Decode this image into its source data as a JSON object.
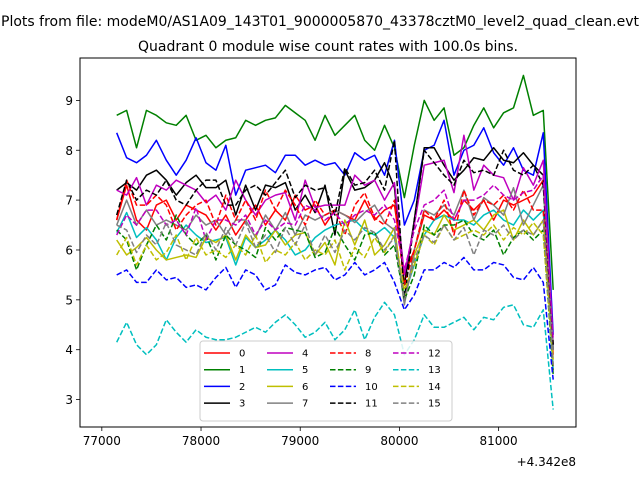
{
  "chart_data": {
    "type": "line",
    "suptitle": "Plots from file: modeM0/AS1A09_143T01_9000005870_43378cztM0_level2_quad_clean.evt",
    "title": "Quadrant 0 module wise count rates with 100.0s bins.",
    "xlabel": "",
    "ylabel": "",
    "x_offset_label": "+4.342e8",
    "x_ticks": [
      77000,
      78000,
      79000,
      80000,
      81000
    ],
    "y_ticks": [
      3,
      4,
      5,
      6,
      7,
      8,
      9
    ],
    "xlim": [
      76780,
      81780
    ],
    "ylim": [
      2.45,
      9.85
    ],
    "grid": false,
    "legend_location": "lower center",
    "legend_columns": 4,
    "x": [
      77150,
      77250,
      77350,
      77450,
      77550,
      77650,
      77750,
      77850,
      77950,
      78050,
      78150,
      78250,
      78350,
      78450,
      78550,
      78650,
      78750,
      78850,
      78950,
      79050,
      79150,
      79250,
      79350,
      79450,
      79550,
      79650,
      79750,
      79850,
      79950,
      80050,
      80150,
      80250,
      80350,
      80450,
      80550,
      80650,
      80750,
      80850,
      80950,
      81050,
      81150,
      81250,
      81350,
      81450,
      81550
    ],
    "series": [
      {
        "name": "0",
        "color": "#ff0000",
        "dash": "solid",
        "values": [
          6.6,
          7.3,
          6.6,
          6.4,
          6.9,
          7.0,
          6.6,
          6.9,
          6.8,
          6.7,
          6.4,
          6.7,
          6.3,
          6.6,
          6.9,
          6.5,
          6.8,
          6.6,
          7.1,
          6.8,
          6.9,
          6.5,
          6.8,
          6.7,
          6.6,
          7.0,
          6.6,
          6.8,
          6.9,
          5.5,
          6.0,
          6.7,
          6.6,
          6.8,
          6.6,
          7.0,
          6.8,
          7.0,
          6.6,
          7.0,
          6.9,
          7.0,
          7.1,
          7.4,
          3.9
        ]
      },
      {
        "name": "1",
        "color": "#008000",
        "dash": "solid",
        "values": [
          8.7,
          8.8,
          8.05,
          8.8,
          8.7,
          8.55,
          8.5,
          8.7,
          8.2,
          8.3,
          8.05,
          8.2,
          8.25,
          8.6,
          8.5,
          8.6,
          8.65,
          8.9,
          8.75,
          8.6,
          8.2,
          8.7,
          8.3,
          8.5,
          8.7,
          8.2,
          8.0,
          8.5,
          8.05,
          7.05,
          8.1,
          9.0,
          8.6,
          8.85,
          7.9,
          8.05,
          8.5,
          8.85,
          8.45,
          8.75,
          8.85,
          9.5,
          8.7,
          8.8,
          5.2
        ]
      },
      {
        "name": "2",
        "color": "#0000ff",
        "dash": "solid",
        "values": [
          8.35,
          7.85,
          7.75,
          7.9,
          8.2,
          7.8,
          7.5,
          7.8,
          8.25,
          7.75,
          7.6,
          8.1,
          7.1,
          7.6,
          7.65,
          7.7,
          7.55,
          7.9,
          7.9,
          7.7,
          7.8,
          7.7,
          7.75,
          7.5,
          7.95,
          7.8,
          7.9,
          7.5,
          8.2,
          6.5,
          7.0,
          8.0,
          8.1,
          8.6,
          7.5,
          8.0,
          8.1,
          8.45,
          7.95,
          7.7,
          8.05,
          7.6,
          7.5,
          8.35,
          4.3
        ]
      },
      {
        "name": "3",
        "color": "#000000",
        "dash": "solid",
        "values": [
          7.2,
          7.35,
          7.2,
          7.5,
          7.6,
          7.4,
          7.1,
          7.35,
          7.5,
          7.25,
          7.25,
          7.4,
          6.7,
          7.3,
          6.8,
          7.3,
          7.25,
          7.35,
          6.8,
          7.1,
          6.75,
          7.3,
          6.3,
          7.6,
          7.2,
          7.25,
          7.4,
          7.75,
          7.25,
          5.3,
          6.6,
          8.05,
          8.05,
          7.7,
          7.4,
          7.6,
          7.85,
          7.8,
          8.05,
          7.8,
          7.75,
          7.95,
          7.7,
          7.5,
          4.0
        ]
      },
      {
        "name": "4",
        "color": "#bf00bf",
        "dash": "solid",
        "values": [
          7.2,
          7.1,
          7.45,
          6.9,
          7.3,
          7.2,
          7.4,
          7.3,
          7.2,
          6.95,
          7.1,
          6.8,
          7.4,
          7.0,
          6.7,
          7.0,
          7.1,
          7.15,
          6.6,
          7.4,
          6.85,
          6.9,
          6.9,
          6.9,
          7.5,
          7.3,
          7.4,
          7.0,
          7.35,
          5.5,
          6.5,
          7.7,
          7.75,
          7.8,
          7.15,
          8.3,
          7.2,
          7.7,
          7.5,
          7.45,
          7.0,
          7.65,
          7.3,
          7.8,
          4.1
        ]
      },
      {
        "name": "5",
        "color": "#00bfbf",
        "dash": "solid",
        "values": [
          6.35,
          6.75,
          6.25,
          6.45,
          6.2,
          5.8,
          6.25,
          6.5,
          6.3,
          6.15,
          6.2,
          6.25,
          5.7,
          6.25,
          6.05,
          6.2,
          6.4,
          6.2,
          5.9,
          6.0,
          6.25,
          6.4,
          6.5,
          6.55,
          6.6,
          6.4,
          6.3,
          6.45,
          6.25,
          5.1,
          5.7,
          6.3,
          6.6,
          6.7,
          6.6,
          6.6,
          6.5,
          6.7,
          6.8,
          6.6,
          6.5,
          6.8,
          6.6,
          6.8,
          3.6
        ]
      },
      {
        "name": "6",
        "color": "#bfbf00",
        "dash": "solid",
        "values": [
          6.2,
          5.9,
          6.05,
          6.25,
          6.0,
          5.8,
          5.85,
          5.9,
          5.85,
          6.25,
          6.15,
          6.3,
          5.8,
          6.3,
          6.05,
          6.1,
          6.4,
          6.1,
          6.3,
          6.35,
          5.9,
          6.15,
          5.7,
          6.6,
          6.1,
          6.6,
          5.9,
          6.1,
          6.45,
          5.0,
          5.9,
          6.4,
          6.3,
          6.7,
          6.4,
          6.5,
          6.6,
          6.4,
          6.7,
          6.8,
          6.2,
          6.6,
          6.3,
          6.6,
          3.8
        ]
      },
      {
        "name": "7",
        "color": "#808080",
        "dash": "solid",
        "values": [
          6.5,
          7.0,
          6.5,
          6.8,
          6.5,
          6.6,
          6.5,
          6.4,
          6.7,
          6.5,
          6.6,
          6.3,
          6.6,
          6.6,
          6.25,
          6.7,
          6.4,
          6.75,
          6.3,
          6.7,
          6.6,
          6.7,
          6.8,
          6.7,
          6.55,
          6.75,
          6.9,
          6.55,
          6.4,
          4.9,
          6.0,
          6.8,
          6.7,
          6.9,
          6.7,
          7.2,
          6.6,
          7.05,
          6.9,
          6.7,
          7.25,
          6.5,
          6.9,
          7.3,
          4.0
        ]
      },
      {
        "name": "8",
        "color": "#ff0000",
        "dash": "dashed",
        "values": [
          6.6,
          7.4,
          6.9,
          6.9,
          7.1,
          6.9,
          6.4,
          6.7,
          6.9,
          7.0,
          6.5,
          7.1,
          6.6,
          7.0,
          6.6,
          7.2,
          6.8,
          7.2,
          6.9,
          6.5,
          7.0,
          6.7,
          6.8,
          6.3,
          6.9,
          7.15,
          6.65,
          6.5,
          7.0,
          5.3,
          6.0,
          6.8,
          6.6,
          7.0,
          6.3,
          7.2,
          6.7,
          7.0,
          6.9,
          7.1,
          6.8,
          7.2,
          6.8,
          6.8,
          3.6
        ]
      },
      {
        "name": "9",
        "color": "#008000",
        "dash": "dashed",
        "values": [
          6.4,
          6.2,
          5.6,
          6.1,
          6.5,
          6.2,
          6.7,
          6.3,
          6.1,
          6.3,
          5.8,
          6.3,
          6.1,
          6.0,
          5.85,
          6.45,
          6.2,
          6.45,
          6.4,
          6.35,
          5.85,
          5.95,
          6.45,
          6.1,
          5.8,
          6.3,
          6.35,
          5.9,
          6.1,
          5.0,
          5.5,
          6.5,
          6.3,
          6.5,
          6.5,
          6.6,
          6.3,
          6.2,
          6.4,
          5.9,
          6.25,
          6.4,
          6.2,
          6.4,
          3.5
        ]
      },
      {
        "name": "10",
        "color": "#0000ff",
        "dash": "dashed",
        "values": [
          5.5,
          5.6,
          5.35,
          5.35,
          5.6,
          5.4,
          5.45,
          5.25,
          5.3,
          5.2,
          5.45,
          5.65,
          5.25,
          5.6,
          5.5,
          5.2,
          5.3,
          5.7,
          5.55,
          5.5,
          5.6,
          5.65,
          5.4,
          5.5,
          5.75,
          5.5,
          5.6,
          5.75,
          5.35,
          4.8,
          5.1,
          5.6,
          5.6,
          5.75,
          5.65,
          5.85,
          5.6,
          5.6,
          5.75,
          5.7,
          5.45,
          5.4,
          5.65,
          5.35,
          3.4
        ]
      },
      {
        "name": "11",
        "color": "#000000",
        "dash": "dashed",
        "values": [
          6.7,
          7.4,
          7.0,
          7.2,
          7.1,
          7.4,
          7.0,
          6.9,
          7.2,
          7.4,
          7.4,
          6.9,
          6.9,
          7.2,
          7.3,
          7.1,
          7.35,
          7.6,
          7.05,
          7.3,
          7.2,
          7.25,
          6.7,
          7.65,
          7.3,
          7.35,
          7.6,
          7.2,
          8.2,
          5.0,
          6.6,
          8.0,
          7.75,
          7.5,
          7.3,
          7.8,
          7.55,
          7.6,
          7.5,
          8.0,
          7.6,
          7.5,
          7.7,
          7.3,
          4.1
        ]
      },
      {
        "name": "12",
        "color": "#bf00bf",
        "dash": "dashed",
        "values": [
          6.3,
          6.7,
          6.5,
          6.8,
          6.8,
          6.5,
          6.6,
          6.3,
          6.85,
          6.2,
          6.6,
          6.6,
          6.5,
          6.7,
          6.3,
          6.6,
          6.4,
          6.55,
          6.5,
          6.9,
          6.8,
          6.6,
          6.75,
          6.5,
          6.7,
          6.8,
          6.7,
          6.9,
          6.6,
          5.6,
          6.4,
          6.9,
          7.0,
          7.2,
          6.6,
          7.0,
          7.0,
          7.1,
          7.3,
          7.1,
          7.0,
          7.15,
          7.2,
          7.5,
          4.2
        ]
      },
      {
        "name": "13",
        "color": "#00bfbf",
        "dash": "dashed",
        "values": [
          4.15,
          4.55,
          4.1,
          3.9,
          4.1,
          4.6,
          4.35,
          4.15,
          4.4,
          4.25,
          4.2,
          4.2,
          4.25,
          4.35,
          4.45,
          4.35,
          4.55,
          4.7,
          4.5,
          4.25,
          4.35,
          4.55,
          4.2,
          4.4,
          4.8,
          4.2,
          4.65,
          4.95,
          4.7,
          3.9,
          4.2,
          4.7,
          4.45,
          4.45,
          4.55,
          4.65,
          4.4,
          4.65,
          4.6,
          4.85,
          4.9,
          4.5,
          4.45,
          4.8,
          2.8
        ]
      },
      {
        "name": "14",
        "color": "#bfbf00",
        "dash": "dashed",
        "values": [
          5.9,
          6.25,
          5.7,
          6.1,
          5.8,
          5.95,
          6.3,
          5.8,
          6.25,
          5.9,
          6.0,
          5.85,
          6.1,
          5.9,
          6.3,
          5.75,
          6.0,
          5.9,
          6.15,
          5.8,
          6.0,
          5.9,
          6.2,
          5.6,
          6.05,
          5.85,
          6.25,
          5.95,
          6.3,
          5.2,
          5.7,
          6.3,
          6.1,
          6.5,
          6.2,
          6.3,
          6.4,
          6.3,
          6.5,
          6.2,
          6.45,
          6.3,
          6.55,
          6.3,
          3.7
        ]
      },
      {
        "name": "15",
        "color": "#808080",
        "dash": "dashed",
        "values": [
          6.5,
          6.4,
          5.95,
          6.3,
          6.1,
          6.55,
          6.1,
          6.0,
          5.9,
          6.35,
          6.0,
          6.45,
          6.1,
          6.55,
          6.05,
          6.3,
          5.95,
          6.45,
          6.1,
          6.5,
          5.9,
          6.3,
          5.95,
          6.4,
          6.2,
          6.45,
          6.35,
          6.0,
          6.25,
          5.0,
          5.8,
          6.3,
          6.15,
          6.5,
          6.2,
          6.45,
          5.9,
          6.4,
          6.3,
          6.5,
          6.2,
          6.4,
          6.3,
          6.6,
          3.7
        ]
      }
    ]
  }
}
